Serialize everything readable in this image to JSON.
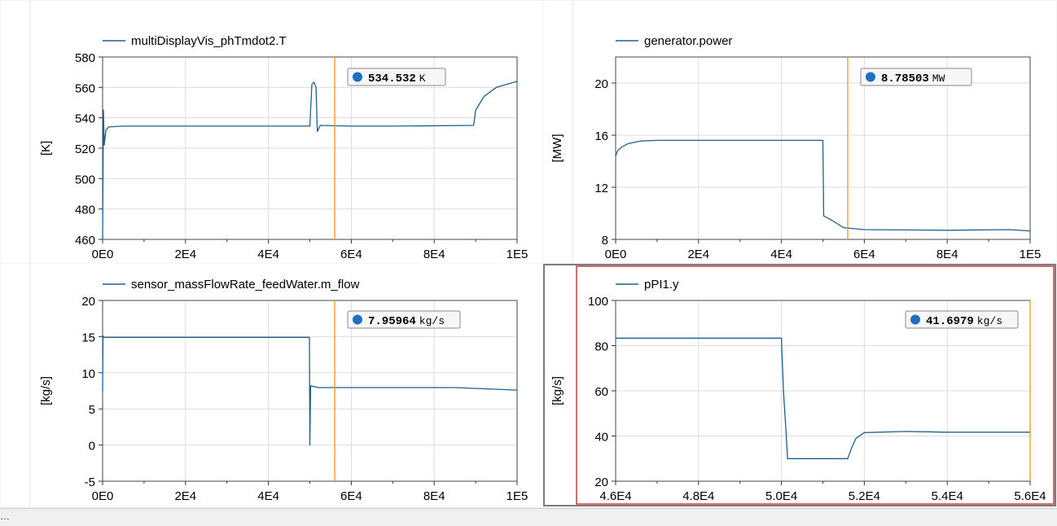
{
  "colors": {
    "series": "#1f5f8f",
    "cursor": "#f0961e",
    "grid": "#dddddd",
    "marker": "#1f6fc2",
    "selection": "#c83c3c"
  },
  "status_text": "…",
  "chart_data": [
    {
      "type": "line",
      "legend": "multiDisplayVis_phTmdot2.T",
      "ylabel": "[K]",
      "xlim": [
        0,
        100000
      ],
      "ylim": [
        460,
        580
      ],
      "xticks": [
        "0E0",
        "2E4",
        "4E4",
        "6E4",
        "8E4",
        "1E5"
      ],
      "yticks": [
        "460",
        "480",
        "500",
        "520",
        "540",
        "560",
        "580"
      ],
      "grid": true,
      "cursor_x": 56000,
      "readout": {
        "value": "534.532",
        "unit": "K"
      },
      "series": [
        {
          "name": "multiDisplayVis_phTmdot2.T",
          "points": [
            [
              0,
              460
            ],
            [
              200,
              545
            ],
            [
              400,
              522
            ],
            [
              800,
              532
            ],
            [
              1500,
              534
            ],
            [
              5000,
              534.5
            ],
            [
              50000,
              534.5
            ],
            [
              50500,
              562
            ],
            [
              51000,
              563.5
            ],
            [
              51500,
              560
            ],
            [
              51800,
              531
            ],
            [
              52500,
              535
            ],
            [
              60000,
              534.5
            ],
            [
              70000,
              534.5
            ],
            [
              89500,
              535
            ],
            [
              90000,
              545
            ],
            [
              92000,
              554
            ],
            [
              95000,
              560
            ],
            [
              100000,
              564
            ]
          ]
        }
      ]
    },
    {
      "type": "line",
      "legend": "generator.power",
      "ylabel": "[MW]",
      "xlim": [
        0,
        100000
      ],
      "ylim": [
        8,
        22
      ],
      "xticks": [
        "0E0",
        "2E4",
        "4E4",
        "6E4",
        "8E4",
        "1E5"
      ],
      "yticks": [
        "8",
        "12",
        "16",
        "20"
      ],
      "grid": true,
      "cursor_x": 56000,
      "readout": {
        "value": "8.78503",
        "unit": "MW"
      },
      "series": [
        {
          "name": "generator.power",
          "points": [
            [
              0,
              14.4
            ],
            [
              500,
              14.8
            ],
            [
              1500,
              15.1
            ],
            [
              3000,
              15.35
            ],
            [
              6000,
              15.55
            ],
            [
              10000,
              15.6
            ],
            [
              20000,
              15.6
            ],
            [
              50000,
              15.6
            ],
            [
              50200,
              9.8
            ],
            [
              52000,
              9.5
            ],
            [
              55000,
              8.9
            ],
            [
              60000,
              8.75
            ],
            [
              80000,
              8.7
            ],
            [
              95000,
              8.75
            ],
            [
              100000,
              8.65
            ]
          ]
        }
      ]
    },
    {
      "type": "line",
      "legend": "sensor_massFlowRate_feedWater.m_flow",
      "ylabel": "[kg/s]",
      "xlim": [
        0,
        100000
      ],
      "ylim": [
        -5,
        20
      ],
      "xticks": [
        "0E0",
        "2E4",
        "4E4",
        "6E4",
        "8E4",
        "1E5"
      ],
      "yticks": [
        "-5",
        "0",
        "5",
        "10",
        "15",
        "20"
      ],
      "grid": true,
      "cursor_x": 56000,
      "readout": {
        "value": "7.95964",
        "unit": "kg/s"
      },
      "series": [
        {
          "name": "sensor_massFlowRate_feedWater.m_flow",
          "points": [
            [
              0,
              7.5
            ],
            [
              100,
              15.1
            ],
            [
              300,
              14.9
            ],
            [
              10000,
              14.9
            ],
            [
              49900,
              14.9
            ],
            [
              50000,
              0
            ],
            [
              50200,
              8.2
            ],
            [
              51000,
              8.1
            ],
            [
              52000,
              7.95
            ],
            [
              70000,
              7.95
            ],
            [
              85000,
              7.95
            ],
            [
              100000,
              7.6
            ]
          ]
        }
      ]
    },
    {
      "type": "line",
      "legend": "pPI1.y",
      "ylabel": "[kg/s]",
      "xlim": [
        46000,
        56000
      ],
      "ylim": [
        20,
        100
      ],
      "xticks": [
        "4.6E4",
        "4.8E4",
        "5.0E4",
        "5.2E4",
        "5.4E4",
        "5.6E4"
      ],
      "yticks": [
        "20",
        "40",
        "60",
        "80",
        "100"
      ],
      "grid": true,
      "cursor_x": 56000,
      "readout": {
        "value": "41.6979",
        "unit": "kg/s"
      },
      "series": [
        {
          "name": "pPI1.y",
          "points": [
            [
              46000,
              83.3
            ],
            [
              50000,
              83.3
            ],
            [
              50050,
              60
            ],
            [
              50100,
              45
            ],
            [
              50150,
              30
            ],
            [
              51600,
              30
            ],
            [
              51700,
              35
            ],
            [
              51800,
              39
            ],
            [
              52000,
              41.5
            ],
            [
              53000,
              42
            ],
            [
              54000,
              41.7
            ],
            [
              56000,
              41.7
            ]
          ]
        }
      ]
    }
  ]
}
